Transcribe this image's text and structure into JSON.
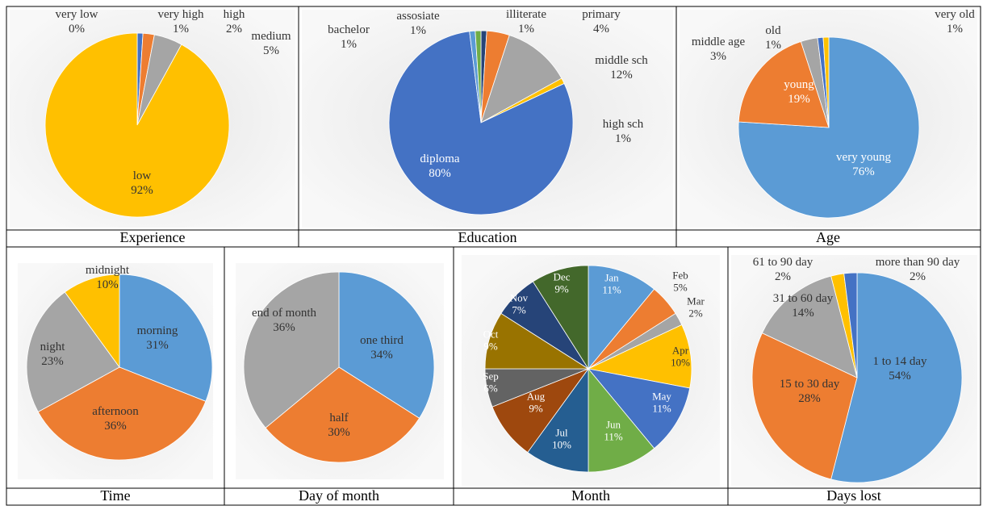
{
  "chart_data": [
    {
      "type": "pie",
      "title": "Experience",
      "categories": [
        "very low",
        "very high",
        "high",
        "medium",
        "low"
      ],
      "values": [
        0,
        1,
        2,
        5,
        92
      ],
      "value_labels": [
        "0%",
        "1%",
        "2%",
        "5%",
        "92%"
      ],
      "colors": [
        "#5b9bd5",
        "#4472c4",
        "#ed7d31",
        "#a5a5a5",
        "#ffc000"
      ]
    },
    {
      "type": "pie",
      "title": "Education",
      "categories": [
        "illiterate",
        "primary",
        "middle sch",
        "high sch",
        "diploma",
        "bachelor",
        "assosiate"
      ],
      "values": [
        1,
        4,
        12,
        1,
        80,
        1,
        1
      ],
      "value_labels": [
        "1%",
        "4%",
        "12%",
        "1%",
        "80%",
        "1%",
        "1%"
      ],
      "colors": [
        "#264478",
        "#ed7d31",
        "#a5a5a5",
        "#ffc000",
        "#4472c4",
        "#5b9bd5",
        "#70ad47"
      ]
    },
    {
      "type": "pie",
      "title": "Age",
      "categories": [
        "very young",
        "young",
        "middle age",
        "old",
        "very old"
      ],
      "values": [
        76,
        19,
        3,
        1,
        1
      ],
      "value_labels": [
        "76%",
        "19%",
        "3%",
        "1%",
        "1%"
      ],
      "colors": [
        "#5b9bd5",
        "#ed7d31",
        "#a5a5a5",
        "#4472c4",
        "#ffc000"
      ]
    },
    {
      "type": "pie",
      "title": "Time",
      "categories": [
        "morning",
        "afternoon",
        "night",
        "midnight"
      ],
      "values": [
        31,
        36,
        23,
        10
      ],
      "value_labels": [
        "31%",
        "36%",
        "23%",
        "10%"
      ],
      "colors": [
        "#5b9bd5",
        "#ed7d31",
        "#a5a5a5",
        "#ffc000"
      ]
    },
    {
      "type": "pie",
      "title": "Day of month",
      "categories": [
        "one third",
        "half",
        "end of month"
      ],
      "values": [
        34,
        30,
        36
      ],
      "value_labels": [
        "34%",
        "30%",
        "36%"
      ],
      "colors": [
        "#5b9bd5",
        "#ed7d31",
        "#a5a5a5"
      ]
    },
    {
      "type": "pie",
      "title": "Month",
      "categories": [
        "Jan",
        "Feb",
        "Mar",
        "Apr",
        "May",
        "Jun",
        "Jul",
        "Aug",
        "Sep",
        "Oct",
        "Nov",
        "Dec"
      ],
      "values": [
        11,
        5,
        2,
        10,
        11,
        11,
        10,
        9,
        6,
        9,
        7,
        9
      ],
      "value_labels": [
        "11%",
        "5%",
        "2%",
        "10%",
        "11%",
        "11%",
        "10%",
        "9%",
        "6%",
        "9%",
        "7%",
        "9%"
      ],
      "colors": [
        "#5b9bd5",
        "#ed7d31",
        "#a5a5a5",
        "#ffc000",
        "#4472c4",
        "#70ad47",
        "#255e91",
        "#9e480e",
        "#636363",
        "#997300",
        "#264478",
        "#43682b"
      ]
    },
    {
      "type": "pie",
      "title": "Days lost",
      "categories": [
        "1 to 14 day",
        "15 to 30 day",
        "31 to 60 day",
        "61 to 90 day",
        "more than 90 day"
      ],
      "values": [
        54,
        28,
        14,
        2,
        2
      ],
      "value_labels": [
        "54%",
        "28%",
        "14%",
        "2%",
        "2%"
      ],
      "colors": [
        "#5b9bd5",
        "#ed7d31",
        "#a5a5a5",
        "#ffc000",
        "#4472c4"
      ]
    }
  ]
}
